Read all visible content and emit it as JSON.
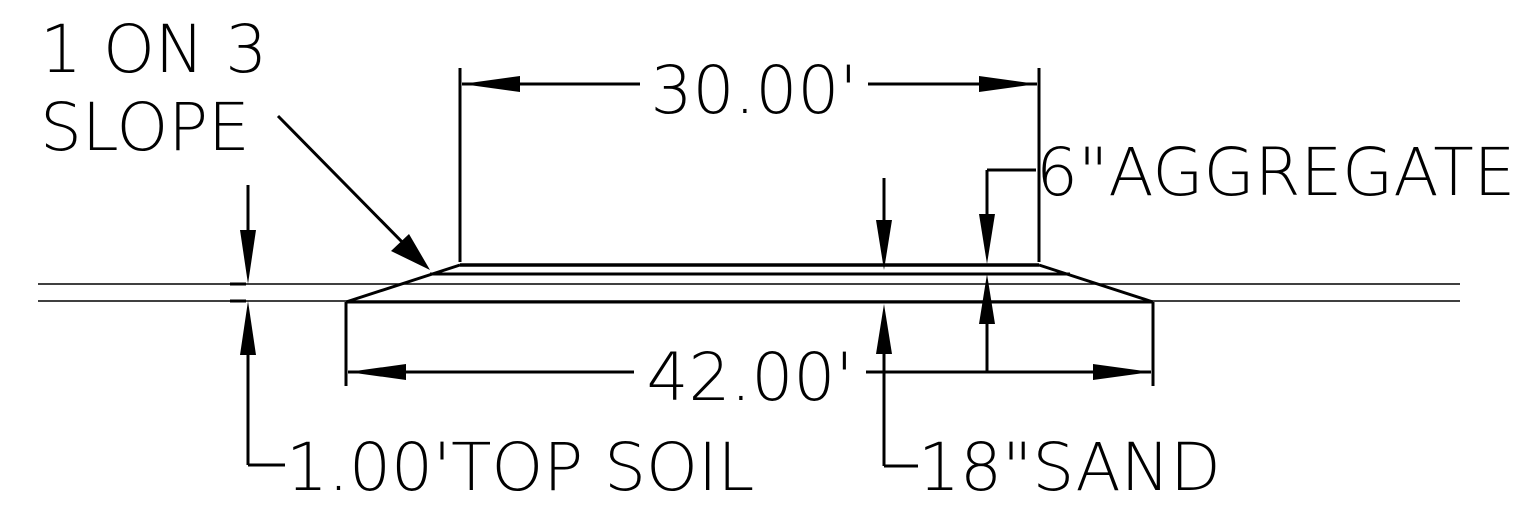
{
  "labels": {
    "slope_line1": "1 ON 3",
    "slope_line2": "SLOPE",
    "top_width": "30.00'",
    "bottom_width": "42.00'",
    "aggregate": "6\"AGGREGATE",
    "topsoil": "1.00'TOP SOIL",
    "sand": "18\"SAND"
  },
  "colors": {
    "line": "#000000",
    "background": "#ffffff"
  }
}
